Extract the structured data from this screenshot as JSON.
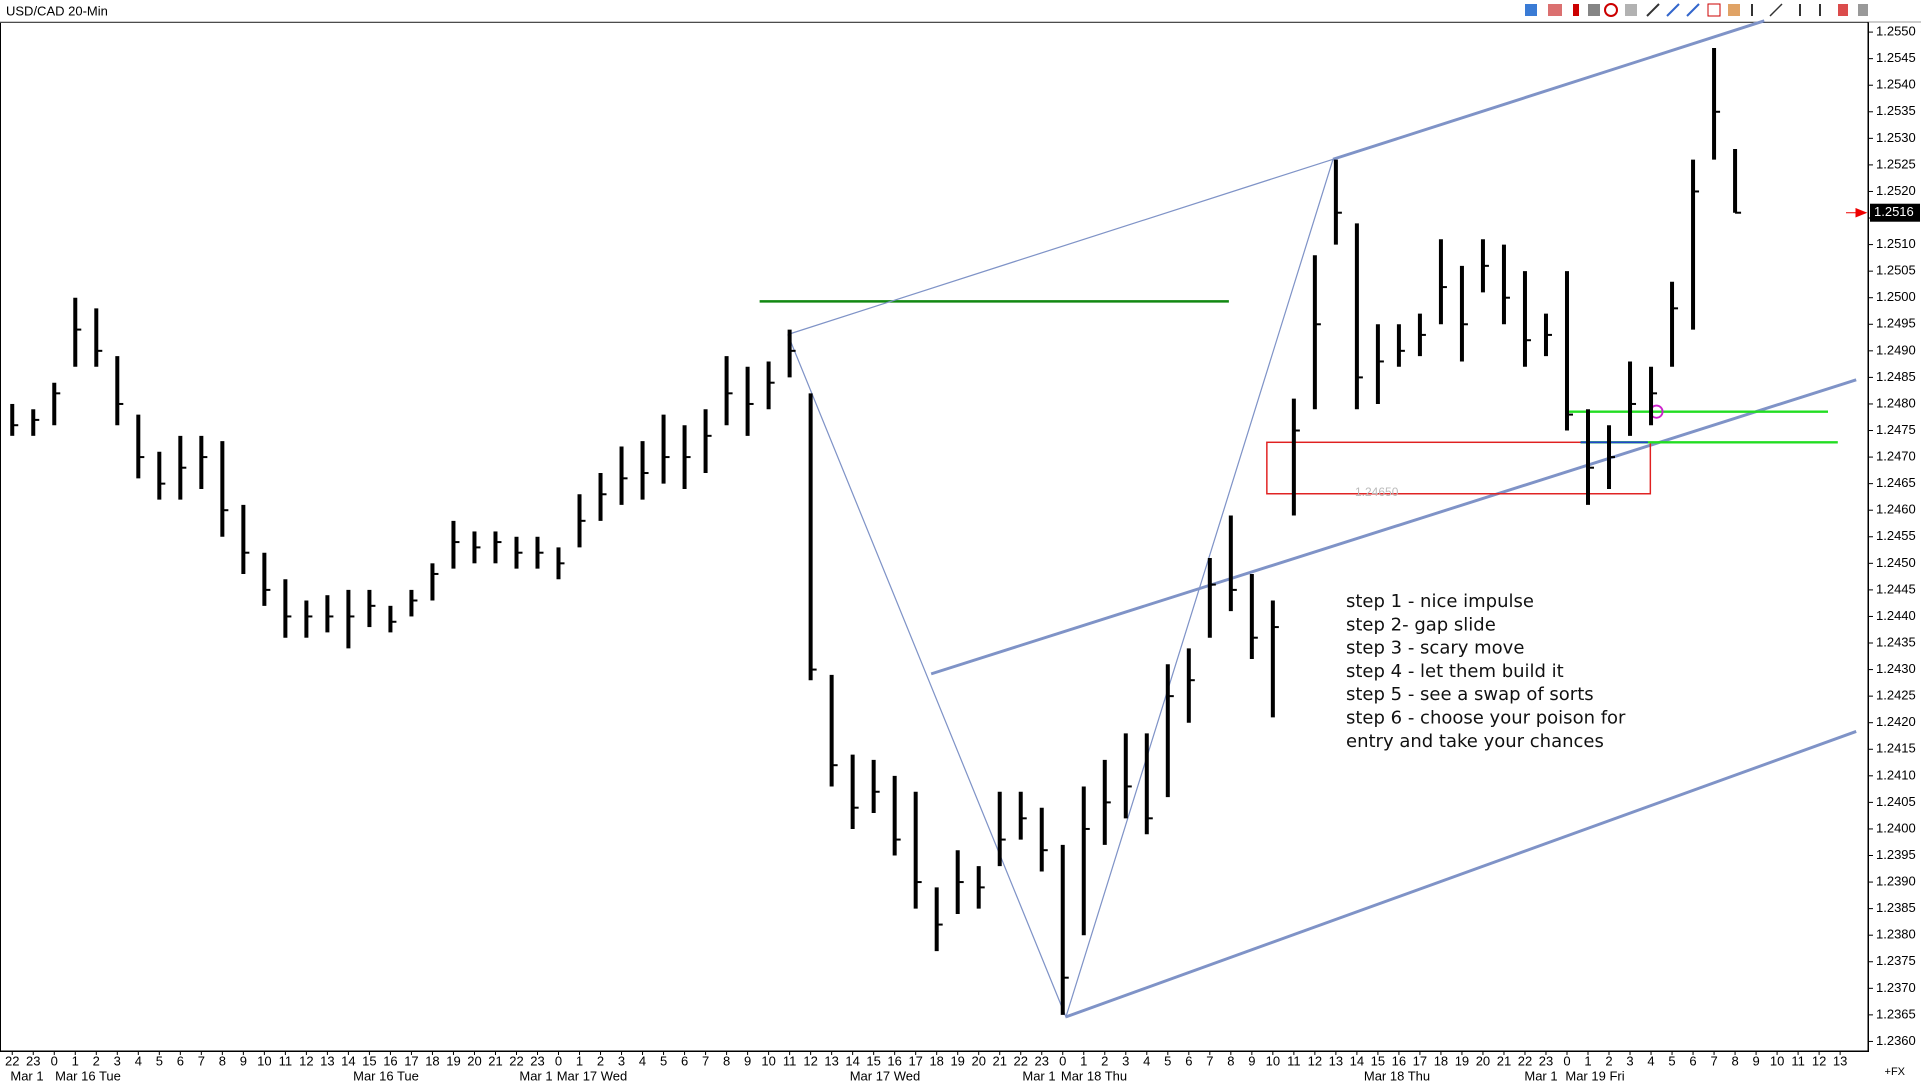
{
  "chart_data": {
    "type": "ohlc",
    "title": "USD/CAD 20-Min",
    "categories": [
      "22",
      "23",
      "0",
      "1",
      "2",
      "3",
      "4",
      "5",
      "6",
      "7",
      "8",
      "9",
      "10",
      "11",
      "12",
      "13",
      "14",
      "15",
      "16",
      "17",
      "18",
      "19",
      "20",
      "21",
      "22",
      "23",
      "0",
      "1",
      "2",
      "3",
      "4",
      "5",
      "6",
      "7",
      "8",
      "9",
      "10",
      "11",
      "12",
      "13",
      "14",
      "15",
      "16",
      "17",
      "18",
      "19",
      "20",
      "21",
      "22",
      "23",
      "0",
      "1",
      "2",
      "3",
      "4",
      "5",
      "6",
      "7",
      "8",
      "9",
      "10",
      "11",
      "12",
      "13",
      "14",
      "15",
      "16",
      "17",
      "18",
      "19",
      "20",
      "21",
      "22",
      "23",
      "0",
      "1",
      "2",
      "3",
      "4",
      "5",
      "6",
      "7",
      "8",
      "9",
      "10",
      "11",
      "12",
      "13"
    ],
    "date_labels": [
      "Mar 1",
      "Mar 16 Tue",
      "Mar 16 Tue",
      "Mar 1",
      "Mar 17 Wed",
      "Mar 17 Wed",
      "Mar 1",
      "Mar 18 Thu",
      "Mar 18 Thu",
      "Mar 1",
      "Mar 19 Fri"
    ],
    "color": "#000000",
    "high": [
      1.248,
      1.2479,
      1.2484,
      1.25,
      1.2498,
      1.2489,
      1.2478,
      1.2471,
      1.2474,
      1.2474,
      1.2473,
      1.2461,
      1.2452,
      1.2447,
      1.2443,
      1.2444,
      1.2445,
      1.2445,
      1.2442,
      1.2445,
      1.245,
      1.2458,
      1.2456,
      1.2456,
      1.2455,
      1.2455,
      1.2453,
      1.2463,
      1.2467,
      1.2472,
      1.2473,
      1.2478,
      1.2476,
      1.2479,
      1.2489,
      1.2487,
      1.2488,
      1.2494,
      1.2482,
      1.2429,
      1.2414,
      1.2413,
      1.241,
      1.2407,
      1.2389,
      1.2396,
      1.2393,
      1.2407,
      1.2407,
      1.2404,
      1.2397,
      1.2408,
      1.2413,
      1.2418,
      1.2418,
      1.2431,
      1.2434,
      1.2451,
      1.2459,
      1.2448,
      1.2443,
      1.2481,
      1.2508,
      1.2526,
      1.2514,
      1.2495,
      1.2495,
      1.2497,
      1.2511,
      1.2506,
      1.2511,
      1.251,
      1.2505,
      1.2497,
      1.2505,
      1.2479,
      1.2476,
      1.2488,
      1.2487,
      1.2503,
      1.2526,
      1.2547,
      1.2528,
      null,
      null,
      null,
      null,
      null
    ],
    "low": [
      1.2474,
      1.2474,
      1.2476,
      1.2487,
      1.2487,
      1.2476,
      1.2466,
      1.2462,
      1.2462,
      1.2464,
      1.2455,
      1.2448,
      1.2442,
      1.2436,
      1.2436,
      1.2437,
      1.2434,
      1.2438,
      1.2437,
      1.244,
      1.2443,
      1.2449,
      1.245,
      1.245,
      1.2449,
      1.2449,
      1.2447,
      1.2453,
      1.2458,
      1.2461,
      1.2462,
      1.2465,
      1.2464,
      1.2467,
      1.2476,
      1.2474,
      1.2479,
      1.2485,
      1.2428,
      1.2408,
      1.24,
      1.2403,
      1.2395,
      1.2385,
      1.2377,
      1.2384,
      1.2385,
      1.2393,
      1.2398,
      1.2392,
      1.2365,
      1.238,
      1.2397,
      1.2402,
      1.2399,
      1.2406,
      1.242,
      1.2436,
      1.2441,
      1.2432,
      1.2421,
      1.2459,
      1.2479,
      1.251,
      1.2479,
      1.248,
      1.2487,
      1.2489,
      1.2495,
      1.2488,
      1.2501,
      1.2495,
      1.2487,
      1.2489,
      1.2475,
      1.2461,
      1.2464,
      1.2474,
      1.2476,
      1.2487,
      1.2494,
      1.2526,
      1.2516,
      null,
      null,
      null,
      null,
      null
    ],
    "close": [
      1.2476,
      1.2477,
      1.2482,
      1.2494,
      1.249,
      1.248,
      1.247,
      1.2465,
      1.2468,
      1.247,
      1.246,
      1.2452,
      1.2445,
      1.244,
      1.244,
      1.244,
      1.244,
      1.2442,
      1.2439,
      1.2443,
      1.2448,
      1.2454,
      1.2453,
      1.2454,
      1.2452,
      1.2452,
      1.245,
      1.2458,
      1.2463,
      1.2466,
      1.2467,
      1.247,
      1.247,
      1.2474,
      1.2482,
      1.248,
      1.2484,
      1.249,
      1.243,
      1.2412,
      1.2404,
      1.2407,
      1.2398,
      1.239,
      1.2382,
      1.239,
      1.2389,
      1.2398,
      1.2402,
      1.2396,
      1.2372,
      1.24,
      1.2405,
      1.2408,
      1.2402,
      1.2425,
      1.2428,
      1.2446,
      1.2445,
      1.2436,
      1.2438,
      1.2475,
      1.2495,
      1.2516,
      1.2485,
      1.2488,
      1.249,
      1.2493,
      1.2502,
      1.2495,
      1.2506,
      1.25,
      1.2492,
      1.2493,
      1.2478,
      1.2468,
      1.247,
      1.248,
      1.2482,
      1.2498,
      1.252,
      1.2535,
      1.2516,
      null,
      null,
      null,
      null,
      null
    ],
    "ylim": [
      1.23582,
      1.25519
    ],
    "yticks": [
      {
        "value": 1.236,
        "label": "1.2360"
      },
      {
        "value": 1.2365,
        "label": "1.2365"
      },
      {
        "value": 1.237,
        "label": "1.2370"
      },
      {
        "value": 1.2375,
        "label": "1.2375"
      },
      {
        "value": 1.238,
        "label": "1.2380"
      },
      {
        "value": 1.2385,
        "label": "1.2385"
      },
      {
        "value": 1.239,
        "label": "1.2390"
      },
      {
        "value": 1.2395,
        "label": "1.2395"
      },
      {
        "value": 1.24,
        "label": "1.2400"
      },
      {
        "value": 1.2405,
        "label": "1.2405"
      },
      {
        "value": 1.241,
        "label": "1.2410"
      },
      {
        "value": 1.2415,
        "label": "1.2415"
      },
      {
        "value": 1.242,
        "label": "1.2420"
      },
      {
        "value": 1.2425,
        "label": "1.2425"
      },
      {
        "value": 1.243,
        "label": "1.2430"
      },
      {
        "value": 1.2435,
        "label": "1.2435"
      },
      {
        "value": 1.244,
        "label": "1.2440"
      },
      {
        "value": 1.2445,
        "label": "1.2445"
      },
      {
        "value": 1.245,
        "label": "1.2450"
      },
      {
        "value": 1.2455,
        "label": "1.2455"
      },
      {
        "value": 1.246,
        "label": "1.2460"
      },
      {
        "value": 1.2465,
        "label": "1.2465"
      },
      {
        "value": 1.247,
        "label": "1.2470"
      },
      {
        "value": 1.2475,
        "label": "1.2475"
      },
      {
        "value": 1.248,
        "label": "1.2480"
      },
      {
        "value": 1.2485,
        "label": "1.2485"
      },
      {
        "value": 1.249,
        "label": "1.2490"
      },
      {
        "value": 1.2495,
        "label": "1.2495"
      },
      {
        "value": 1.25,
        "label": "1.2500"
      },
      {
        "value": 1.2505,
        "label": "1.2505"
      },
      {
        "value": 1.251,
        "label": "1.2510"
      },
      {
        "value": 1.2515,
        "label": "1.2515"
      },
      {
        "value": 1.252,
        "label": "1.2520"
      },
      {
        "value": 1.2525,
        "label": "1.2525"
      },
      {
        "value": 1.253,
        "label": "1.2530"
      },
      {
        "value": 1.2535,
        "label": "1.2535"
      },
      {
        "value": 1.254,
        "label": "1.2540"
      },
      {
        "value": 1.2545,
        "label": "1.2545"
      },
      {
        "value": 1.255,
        "label": "1.2550"
      }
    ],
    "last_price": 1.2516,
    "box_label": "1.24650",
    "notes": [
      "step 1 - nice impulse",
      "step 2- gap slide",
      "step 3 - scary move",
      "step 4 - let them build it",
      "step 5 - see a swap of sorts",
      "step 6 - choose your poison for",
      "entry and take your chances"
    ],
    "footer": "+FX"
  }
}
